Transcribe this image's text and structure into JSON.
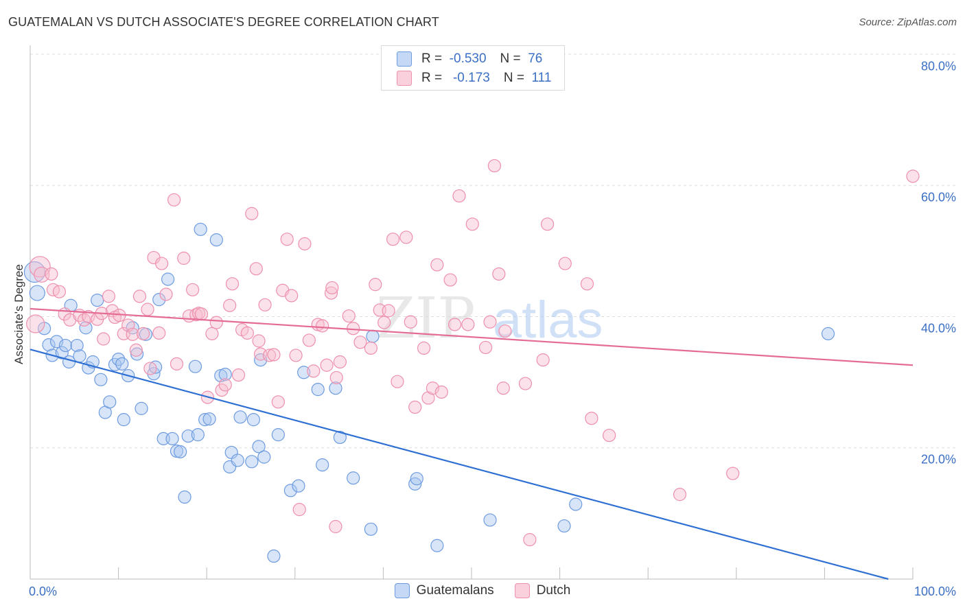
{
  "title": "GUATEMALAN VS DUTCH ASSOCIATE'S DEGREE CORRELATION CHART",
  "source": "Source: ZipAtlas.com",
  "colors": {
    "blue_fill": "#a9c6ef",
    "blue_stroke": "#6d9be0",
    "blue_line": "#2e6fd4",
    "pink_fill": "#f7bfd0",
    "pink_stroke": "#ee8fac",
    "pink_line": "#e46b94",
    "value_text": "#3b6fc4",
    "grid": "#dddddd"
  },
  "legend_top": {
    "rows": [
      {
        "r_label": "R =",
        "r_value": "-0.530",
        "n_label": "N =",
        "n_value": "76"
      },
      {
        "r_label": "R =",
        "r_value": "-0.173",
        "n_label": "N =",
        "n_value": "111"
      }
    ]
  },
  "legend_bottom": [
    "Guatemalans",
    "Dutch"
  ],
  "chart_data": {
    "type": "scatter",
    "xlabel": "",
    "ylabel": "Associate's Degree",
    "xlim": [
      0,
      100
    ],
    "ylim": [
      0,
      80
    ],
    "x_tick_labels": [
      "0.0%",
      "100.0%"
    ],
    "y_ticks": [
      20,
      40,
      60,
      80
    ],
    "y_tick_labels": [
      "20.0%",
      "40.0%",
      "60.0%",
      "80.0%"
    ],
    "grid": "horizontal-dashed",
    "legend_placement": "top-center and bottom",
    "series": [
      {
        "name": "Guatemalans",
        "r": -0.53,
        "n": 76,
        "trend": [
          [
            0,
            35.0
          ],
          [
            100,
            -1.0
          ]
        ],
        "points": [
          [
            0.5,
            46.8,
            14
          ],
          [
            0.8,
            43.6,
            10
          ],
          [
            1.6,
            38.2,
            8
          ],
          [
            2.1,
            35.7,
            8
          ],
          [
            2.5,
            34.1,
            8
          ],
          [
            3.0,
            36.2,
            8
          ],
          [
            3.6,
            34.5,
            8
          ],
          [
            4.0,
            35.6,
            8
          ],
          [
            4.4,
            33.1,
            8
          ],
          [
            4.6,
            41.7,
            8
          ],
          [
            5.3,
            35.6,
            8
          ],
          [
            5.6,
            34.0,
            8
          ],
          [
            6.3,
            38.3,
            8
          ],
          [
            6.6,
            32.2,
            8
          ],
          [
            7.1,
            33.1,
            8
          ],
          [
            7.6,
            42.5,
            8
          ],
          [
            8.0,
            30.4,
            8
          ],
          [
            8.5,
            25.4,
            8
          ],
          [
            9.0,
            27.0,
            8
          ],
          [
            9.6,
            32.7,
            8
          ],
          [
            10.0,
            33.5,
            8
          ],
          [
            10.4,
            32.8,
            8
          ],
          [
            10.6,
            24.3,
            8
          ],
          [
            11.1,
            31.0,
            8
          ],
          [
            11.6,
            38.3,
            8
          ],
          [
            12.1,
            34.3,
            8
          ],
          [
            12.6,
            26.0,
            8
          ],
          [
            13.1,
            37.3,
            8
          ],
          [
            14.0,
            31.3,
            8
          ],
          [
            14.2,
            32.3,
            8
          ],
          [
            14.6,
            42.6,
            8
          ],
          [
            15.1,
            21.4,
            8
          ],
          [
            15.6,
            45.7,
            8
          ],
          [
            16.1,
            21.4,
            8
          ],
          [
            16.6,
            19.5,
            8
          ],
          [
            17.0,
            19.4,
            8
          ],
          [
            17.5,
            12.5,
            8
          ],
          [
            17.9,
            21.8,
            8
          ],
          [
            18.7,
            32.4,
            8
          ],
          [
            19.0,
            22.0,
            8
          ],
          [
            19.3,
            53.3,
            8
          ],
          [
            19.8,
            24.3,
            8
          ],
          [
            20.3,
            24.4,
            8
          ],
          [
            21.1,
            51.7,
            8
          ],
          [
            21.6,
            31.0,
            8
          ],
          [
            22.1,
            31.2,
            8
          ],
          [
            22.6,
            17.1,
            8
          ],
          [
            22.8,
            19.3,
            8
          ],
          [
            23.5,
            18.1,
            8
          ],
          [
            23.8,
            24.7,
            8
          ],
          [
            25.1,
            17.9,
            8
          ],
          [
            25.3,
            24.3,
            8
          ],
          [
            25.9,
            20.2,
            8
          ],
          [
            26.1,
            33.4,
            8
          ],
          [
            26.5,
            18.6,
            8
          ],
          [
            27.6,
            3.5,
            8
          ],
          [
            28.1,
            22.0,
            8
          ],
          [
            29.5,
            13.5,
            8
          ],
          [
            30.4,
            14.2,
            8
          ],
          [
            31.0,
            31.5,
            8
          ],
          [
            32.6,
            28.9,
            8
          ],
          [
            33.1,
            17.4,
            8
          ],
          [
            34.6,
            29.1,
            8
          ],
          [
            35.1,
            21.6,
            8
          ],
          [
            36.6,
            15.4,
            8
          ],
          [
            38.6,
            7.6,
            8
          ],
          [
            38.8,
            37.0,
            8
          ],
          [
            43.6,
            14.5,
            8
          ],
          [
            43.8,
            15.3,
            8
          ],
          [
            46.1,
            5.1,
            8
          ],
          [
            52.1,
            9.0,
            8
          ],
          [
            60.5,
            8.1,
            8
          ],
          [
            61.8,
            11.4,
            8
          ],
          [
            90.4,
            37.4,
            8
          ]
        ]
      },
      {
        "name": "Dutch",
        "r": -0.173,
        "n": 111,
        "trend": [
          [
            0,
            41.2
          ],
          [
            100,
            32.6
          ]
        ],
        "points": [
          [
            0.6,
            38.9,
            12
          ],
          [
            1.1,
            47.6,
            14
          ],
          [
            1.3,
            46.4,
            10
          ],
          [
            2.4,
            46.5,
            8
          ],
          [
            2.6,
            44.1,
            8
          ],
          [
            3.3,
            43.8,
            8
          ],
          [
            3.9,
            40.4,
            8
          ],
          [
            4.5,
            39.5,
            8
          ],
          [
            5.6,
            40.2,
            8
          ],
          [
            6.1,
            39.5,
            8
          ],
          [
            6.6,
            40.0,
            8
          ],
          [
            7.6,
            39.6,
            8
          ],
          [
            8.1,
            40.5,
            8
          ],
          [
            8.3,
            36.6,
            8
          ],
          [
            8.9,
            43.1,
            8
          ],
          [
            9.3,
            40.9,
            8
          ],
          [
            9.6,
            39.9,
            8
          ],
          [
            10.1,
            40.2,
            8
          ],
          [
            10.6,
            37.4,
            8
          ],
          [
            11.1,
            38.7,
            8
          ],
          [
            11.6,
            37.3,
            8
          ],
          [
            12.0,
            34.9,
            8
          ],
          [
            12.4,
            43.1,
            8
          ],
          [
            12.8,
            37.4,
            8
          ],
          [
            13.3,
            41.1,
            8
          ],
          [
            13.6,
            32.1,
            8
          ],
          [
            14.0,
            49.0,
            8
          ],
          [
            14.6,
            37.5,
            8
          ],
          [
            14.9,
            48.1,
            8
          ],
          [
            15.4,
            43.4,
            8
          ],
          [
            16.3,
            57.8,
            8
          ],
          [
            16.6,
            32.8,
            8
          ],
          [
            17.4,
            48.9,
            8
          ],
          [
            18.0,
            40.1,
            8
          ],
          [
            18.4,
            44.1,
            8
          ],
          [
            18.8,
            40.3,
            8
          ],
          [
            19.1,
            40.5,
            8
          ],
          [
            19.4,
            40.4,
            8
          ],
          [
            20.1,
            27.7,
            8
          ],
          [
            20.6,
            37.4,
            8
          ],
          [
            21.1,
            39.1,
            8
          ],
          [
            21.7,
            28.8,
            8
          ],
          [
            22.1,
            29.6,
            8
          ],
          [
            22.6,
            41.7,
            8
          ],
          [
            22.9,
            45.0,
            8
          ],
          [
            23.6,
            31.1,
            8
          ],
          [
            24.0,
            38.0,
            8
          ],
          [
            24.6,
            37.5,
            8
          ],
          [
            25.1,
            55.7,
            8
          ],
          [
            25.6,
            47.3,
            8
          ],
          [
            25.9,
            36.3,
            8
          ],
          [
            26.1,
            34.3,
            8
          ],
          [
            26.6,
            41.8,
            8
          ],
          [
            27.1,
            34.1,
            8
          ],
          [
            27.6,
            34.2,
            8
          ],
          [
            28.1,
            27.0,
            8
          ],
          [
            28.6,
            44.0,
            8
          ],
          [
            29.1,
            51.8,
            8
          ],
          [
            29.6,
            43.2,
            8
          ],
          [
            30.1,
            34.1,
            8
          ],
          [
            30.5,
            10.6,
            8
          ],
          [
            31.1,
            51.1,
            8
          ],
          [
            31.6,
            36.4,
            8
          ],
          [
            32.1,
            31.7,
            8
          ],
          [
            32.6,
            38.8,
            8
          ],
          [
            33.1,
            38.6,
            8
          ],
          [
            33.6,
            32.6,
            8
          ],
          [
            34.1,
            43.6,
            8
          ],
          [
            34.2,
            44.4,
            8
          ],
          [
            34.6,
            8.0,
            8
          ],
          [
            34.7,
            30.7,
            8
          ],
          [
            35.1,
            33.1,
            8
          ],
          [
            36.1,
            40.1,
            8
          ],
          [
            36.6,
            38.2,
            8
          ],
          [
            37.4,
            36.1,
            8
          ],
          [
            38.6,
            35.2,
            8
          ],
          [
            39.1,
            44.9,
            8
          ],
          [
            39.6,
            41.0,
            8
          ],
          [
            40.1,
            39.1,
            8
          ],
          [
            40.6,
            40.9,
            8
          ],
          [
            41.1,
            51.8,
            8
          ],
          [
            41.6,
            30.1,
            8
          ],
          [
            42.6,
            52.1,
            8
          ],
          [
            43.1,
            39.2,
            8
          ],
          [
            43.6,
            26.2,
            8
          ],
          [
            44.6,
            35.2,
            8
          ],
          [
            45.1,
            27.6,
            8
          ],
          [
            45.6,
            29.1,
            8
          ],
          [
            46.1,
            47.9,
            8
          ],
          [
            46.6,
            28.5,
            8
          ],
          [
            47.6,
            45.6,
            8
          ],
          [
            48.1,
            38.8,
            8
          ],
          [
            48.6,
            58.4,
            8
          ],
          [
            49.6,
            38.8,
            8
          ],
          [
            50.1,
            54.1,
            8
          ],
          [
            51.6,
            35.3,
            8
          ],
          [
            52.1,
            39.2,
            8
          ],
          [
            52.6,
            63.0,
            8
          ],
          [
            53.1,
            46.5,
            8
          ],
          [
            53.6,
            29.1,
            8
          ],
          [
            53.8,
            37.8,
            8
          ],
          [
            56.1,
            29.8,
            8
          ],
          [
            56.6,
            6.0,
            8
          ],
          [
            58.1,
            33.4,
            8
          ],
          [
            58.6,
            54.1,
            8
          ],
          [
            60.6,
            48.1,
            8
          ],
          [
            63.1,
            45.0,
            8
          ],
          [
            63.6,
            24.5,
            8
          ],
          [
            65.6,
            21.9,
            8
          ],
          [
            73.6,
            12.9,
            8
          ],
          [
            79.6,
            16.1,
            8
          ],
          [
            100.0,
            61.4,
            8
          ]
        ]
      }
    ]
  }
}
